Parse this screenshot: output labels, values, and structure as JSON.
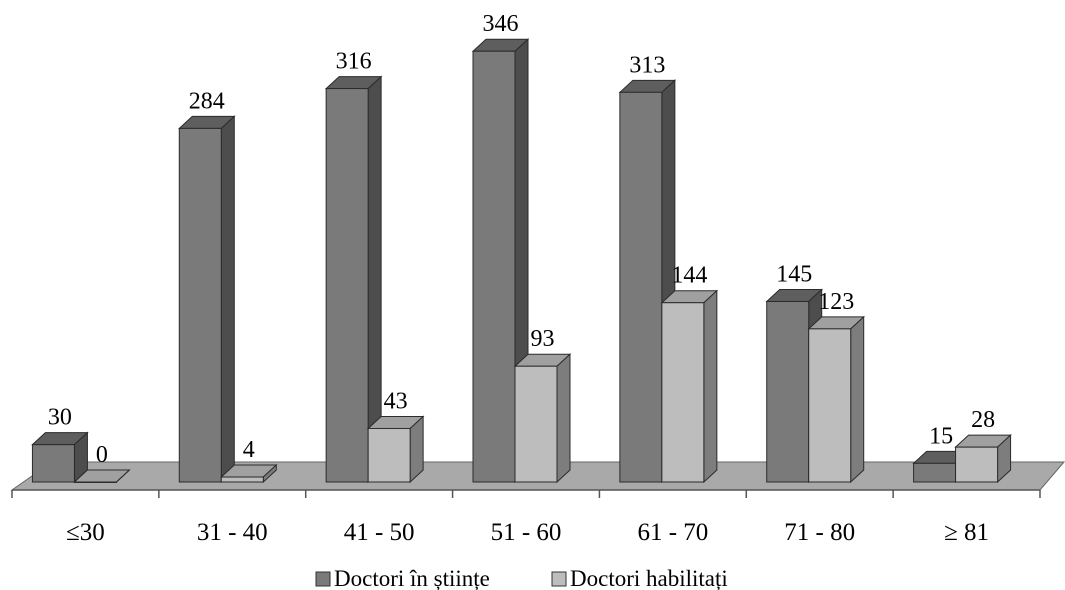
{
  "chart_data": {
    "type": "bar",
    "style": "3d-clustered-column",
    "categories": [
      "≤30",
      "31 - 40",
      "41 - 50",
      "51 - 60",
      "61 - 70",
      "71 - 80",
      "≥ 81"
    ],
    "series": [
      {
        "name": "Doctori în științe",
        "values": [
          30,
          284,
          316,
          346,
          313,
          145,
          15
        ]
      },
      {
        "name": "Doctori habilitați",
        "values": [
          0,
          4,
          43,
          93,
          144,
          123,
          28
        ]
      }
    ],
    "data_labels": true,
    "ylim": [
      0,
      350
    ],
    "grid": false,
    "legend": "bottom",
    "colors": {
      "series1_front": "#7a7a7a",
      "series1_side": "#4d4d4d",
      "series1_top": "#5e5e5e",
      "series2_front": "#bdbdbd",
      "series2_side": "#7d7d7d",
      "series2_top": "#a0a0a0",
      "floor": "#a9a9a9",
      "floor_edge": "#666666"
    }
  }
}
